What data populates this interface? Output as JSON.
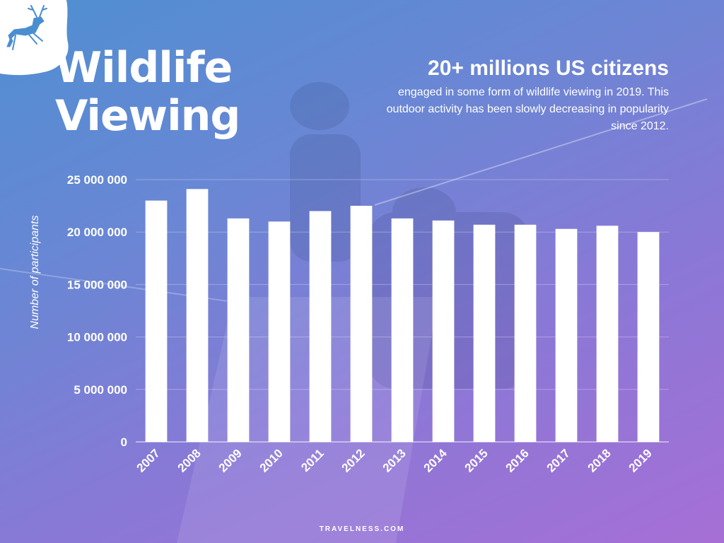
{
  "logo": {
    "icon": "deer-icon",
    "color": "#4a8ed0"
  },
  "title": {
    "line1": "Wildlife",
    "line2": "Viewing"
  },
  "headline": "20+ millions US citizens",
  "subtext": "engaged in some form of wildlife viewing in 2019. This outdoor activity has been slowly decreasing in popularity since 2012.",
  "footer": "TRAVELNESS.COM",
  "chart_data": {
    "type": "bar",
    "categories": [
      "2007",
      "2008",
      "2009",
      "2010",
      "2011",
      "2012",
      "2013",
      "2014",
      "2015",
      "2016",
      "2017",
      "2018",
      "2019"
    ],
    "values": [
      23000000,
      24100000,
      21300000,
      21000000,
      22000000,
      22500000,
      21300000,
      21100000,
      20700000,
      20700000,
      20300000,
      20600000,
      20000000
    ],
    "title": "",
    "xlabel": "",
    "ylabel": "Number of participants",
    "ylim": [
      0,
      25000000
    ],
    "yticks": [
      {
        "value": 0,
        "label": "0"
      },
      {
        "value": 5000000,
        "label": "5 000 000"
      },
      {
        "value": 10000000,
        "label": "10 000 000"
      },
      {
        "value": 15000000,
        "label": "15 000 000"
      },
      {
        "value": 20000000,
        "label": "20 000 000"
      },
      {
        "value": 25000000,
        "label": "25 000 000"
      }
    ],
    "grid": true,
    "bar_color": "#ffffff"
  }
}
